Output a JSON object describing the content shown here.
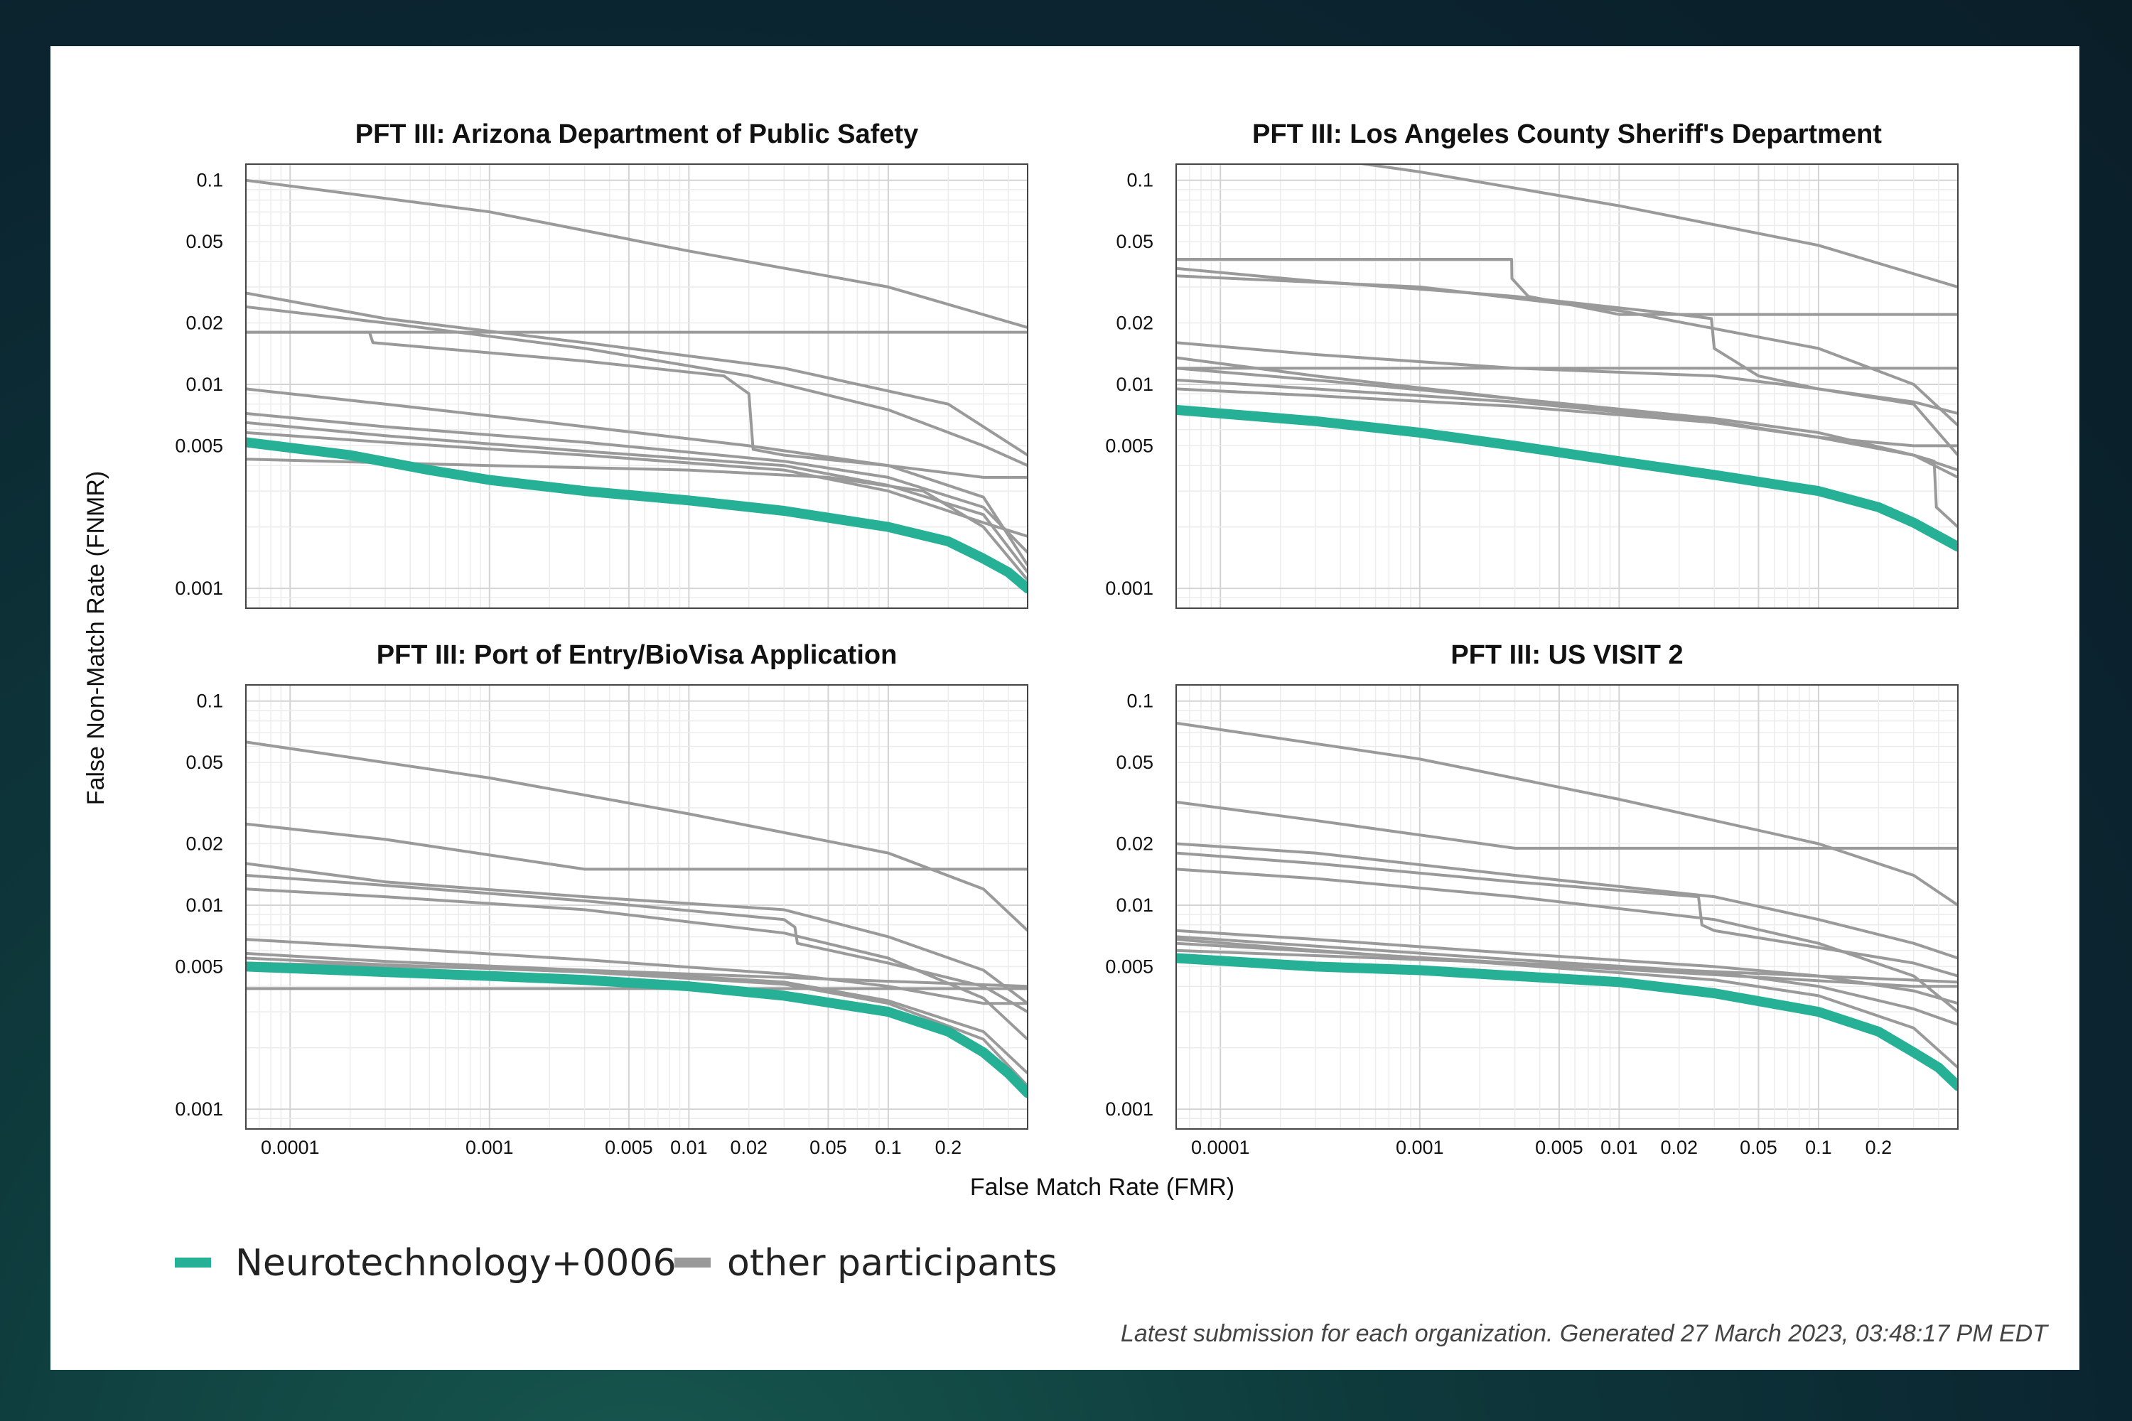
{
  "chart_data": {
    "type": "line",
    "xlabel": "False Match Rate (FMR)",
    "ylabel": "False Non-Match Rate (FNMR)",
    "x_scale": "log",
    "y_scale": "log",
    "xlim": [
      6e-05,
      0.5
    ],
    "ylim": [
      0.0008,
      0.12
    ],
    "x_ticks": [
      {
        "value": 0.0001,
        "label": "0.0001"
      },
      {
        "value": 0.001,
        "label": "0.001"
      },
      {
        "value": 0.005,
        "label": "0.005"
      },
      {
        "value": 0.01,
        "label": "0.01"
      },
      {
        "value": 0.02,
        "label": "0.02"
      },
      {
        "value": 0.05,
        "label": "0.05"
      },
      {
        "value": 0.1,
        "label": "0.1"
      },
      {
        "value": 0.2,
        "label": "0.2"
      }
    ],
    "y_ticks": [
      {
        "value": 0.1,
        "label": "0.1"
      },
      {
        "value": 0.05,
        "label": "0.05"
      },
      {
        "value": 0.02,
        "label": "0.02"
      },
      {
        "value": 0.01,
        "label": "0.01"
      },
      {
        "value": 0.005,
        "label": "0.005"
      },
      {
        "value": 0.001,
        "label": "0.001"
      }
    ],
    "grid": true,
    "legend": {
      "placement": "bottom-left",
      "entries": [
        {
          "label": "Neurotechnology+0006",
          "color": "#26b096"
        },
        {
          "label": "other participants",
          "color": "#999999"
        }
      ]
    },
    "colors": {
      "highlight": "#26b096",
      "other": "#9a9a9a",
      "grid": "#e3e3e3"
    },
    "panels": [
      {
        "title": "PFT III: Arizona Department of Public Safety",
        "highlight": {
          "x": [
            6e-05,
            0.0002,
            0.0005,
            0.001,
            0.003,
            0.01,
            0.03,
            0.1,
            0.2,
            0.3,
            0.4,
            0.5
          ],
          "y": [
            0.0052,
            0.0045,
            0.0038,
            0.0034,
            0.003,
            0.0027,
            0.0024,
            0.002,
            0.0017,
            0.0014,
            0.0012,
            0.001
          ]
        },
        "others": [
          {
            "x": [
              6e-05,
              0.001,
              0.01,
              0.1,
              0.5
            ],
            "y": [
              0.1,
              0.07,
              0.045,
              0.03,
              0.019
            ]
          },
          {
            "x": [
              6e-05,
              0.5
            ],
            "y": [
              0.018,
              0.018
            ]
          },
          {
            "x": [
              6e-05,
              0.0003,
              0.003,
              0.03,
              0.2,
              0.5
            ],
            "y": [
              0.028,
              0.021,
              0.016,
              0.012,
              0.008,
              0.0045
            ]
          },
          {
            "x": [
              6e-05,
              0.0003,
              0.003,
              0.02,
              0.1,
              0.3,
              0.5
            ],
            "y": [
              0.024,
              0.02,
              0.015,
              0.011,
              0.0075,
              0.005,
              0.004
            ]
          },
          {
            "x": [
              6e-05,
              0.00025,
              0.00026,
              0.003,
              0.015,
              0.02,
              0.021,
              0.03,
              0.1,
              0.3,
              0.5
            ],
            "y": [
              0.018,
              0.018,
              0.016,
              0.013,
              0.011,
              0.009,
              0.0048,
              0.0045,
              0.004,
              0.0035,
              0.0035
            ]
          },
          {
            "x": [
              6e-05,
              0.0003,
              0.002,
              0.02,
              0.1,
              0.3,
              0.5
            ],
            "y": [
              0.0095,
              0.008,
              0.0065,
              0.005,
              0.004,
              0.0028,
              0.0013
            ]
          },
          {
            "x": [
              6e-05,
              0.0003,
              0.003,
              0.03,
              0.1,
              0.3,
              0.5
            ],
            "y": [
              0.0072,
              0.0062,
              0.0052,
              0.0042,
              0.0035,
              0.0025,
              0.0015
            ]
          },
          {
            "x": [
              6e-05,
              0.0003,
              0.003,
              0.03,
              0.1,
              0.3,
              0.5
            ],
            "y": [
              0.0065,
              0.0056,
              0.0047,
              0.004,
              0.0032,
              0.0023,
              0.0012
            ]
          },
          {
            "x": [
              6e-05,
              0.0003,
              0.003,
              0.03,
              0.1,
              0.3,
              0.5
            ],
            "y": [
              0.0058,
              0.0052,
              0.0045,
              0.0038,
              0.003,
              0.0021,
              0.0018
            ]
          },
          {
            "x": [
              6e-05,
              0.001,
              0.01,
              0.05,
              0.15,
              0.3,
              0.5
            ],
            "y": [
              0.0043,
              0.004,
              0.0038,
              0.0035,
              0.003,
              0.002,
              0.0011
            ]
          }
        ]
      },
      {
        "title": "PFT III: Los Angeles County Sheriff's Department",
        "highlight": {
          "x": [
            6e-05,
            0.0003,
            0.001,
            0.003,
            0.01,
            0.03,
            0.1,
            0.2,
            0.3,
            0.5
          ],
          "y": [
            0.0075,
            0.0066,
            0.0058,
            0.005,
            0.0042,
            0.0036,
            0.003,
            0.0025,
            0.0021,
            0.0016
          ]
        },
        "others": [
          {
            "x": [
              6e-05,
              0.0003,
              0.001,
              0.01,
              0.1,
              0.5
            ],
            "y": [
              0.15,
              0.13,
              0.11,
              0.075,
              0.048,
              0.03
            ]
          },
          {
            "x": [
              6e-05,
              0.00289,
              0.0029,
              0.0035,
              0.01,
              0.5
            ],
            "y": [
              0.041,
              0.041,
              0.033,
              0.027,
              0.022,
              0.022
            ]
          },
          {
            "x": [
              6e-05,
              0.0003,
              0.003,
              0.02,
              0.029,
              0.03,
              0.05,
              0.1,
              0.3,
              0.5
            ],
            "y": [
              0.037,
              0.032,
              0.027,
              0.022,
              0.021,
              0.015,
              0.011,
              0.0095,
              0.008,
              0.0045
            ]
          },
          {
            "x": [
              6e-05,
              0.001,
              0.01,
              0.1,
              0.3,
              0.5
            ],
            "y": [
              0.034,
              0.03,
              0.023,
              0.015,
              0.01,
              0.0063
            ]
          },
          {
            "x": [
              6e-05,
              0.0003,
              0.003,
              0.03,
              0.1,
              0.3,
              0.5
            ],
            "y": [
              0.016,
              0.014,
              0.012,
              0.011,
              0.0095,
              0.0082,
              0.0072
            ]
          },
          {
            "x": [
              6e-05,
              0.5
            ],
            "y": [
              0.012,
              0.012
            ]
          },
          {
            "x": [
              6e-05,
              0.0003,
              0.003,
              0.03,
              0.1,
              0.3,
              0.5
            ],
            "y": [
              0.0135,
              0.011,
              0.0085,
              0.0065,
              0.0055,
              0.005,
              0.005
            ]
          },
          {
            "x": [
              6e-05,
              0.0003,
              0.003,
              0.03,
              0.1,
              0.3,
              0.5
            ],
            "y": [
              0.012,
              0.0105,
              0.0085,
              0.0068,
              0.0058,
              0.0045,
              0.0035
            ]
          },
          {
            "x": [
              6e-05,
              0.0003,
              0.003,
              0.03,
              0.1,
              0.3,
              0.38,
              0.39,
              0.5
            ],
            "y": [
              0.0105,
              0.0095,
              0.0082,
              0.0066,
              0.0055,
              0.0045,
              0.0042,
              0.0025,
              0.002
            ]
          },
          {
            "x": [
              6e-05,
              0.0003,
              0.003,
              0.03,
              0.1,
              0.3,
              0.5
            ],
            "y": [
              0.0095,
              0.0088,
              0.0078,
              0.0065,
              0.0055,
              0.0045,
              0.0038
            ]
          }
        ]
      },
      {
        "title": "PFT III: Port of Entry/BioVisa Application",
        "highlight": {
          "x": [
            6e-05,
            0.0003,
            0.001,
            0.003,
            0.01,
            0.03,
            0.1,
            0.2,
            0.3,
            0.4,
            0.5
          ],
          "y": [
            0.005,
            0.0047,
            0.0045,
            0.0043,
            0.004,
            0.0036,
            0.003,
            0.0024,
            0.0019,
            0.0015,
            0.0012
          ]
        },
        "others": [
          {
            "x": [
              6e-05,
              0.001,
              0.01,
              0.1,
              0.3,
              0.5
            ],
            "y": [
              0.063,
              0.042,
              0.028,
              0.018,
              0.012,
              0.0075
            ]
          },
          {
            "x": [
              6e-05,
              0.0003,
              0.003,
              0.5
            ],
            "y": [
              0.025,
              0.021,
              0.015,
              0.015
            ]
          },
          {
            "x": [
              6e-05,
              0.0003,
              0.003,
              0.03,
              0.1,
              0.3,
              0.5
            ],
            "y": [
              0.016,
              0.013,
              0.011,
              0.0095,
              0.007,
              0.0048,
              0.0033
            ]
          },
          {
            "x": [
              6e-05,
              0.0003,
              0.003,
              0.03,
              0.034,
              0.035,
              0.1,
              0.3,
              0.5
            ],
            "y": [
              0.014,
              0.0125,
              0.0105,
              0.0085,
              0.0078,
              0.0065,
              0.0052,
              0.004,
              0.003
            ]
          },
          {
            "x": [
              6e-05,
              0.0003,
              0.003,
              0.03,
              0.1,
              0.3,
              0.5
            ],
            "y": [
              0.012,
              0.011,
              0.0095,
              0.0073,
              0.0055,
              0.0035,
              0.0022
            ]
          },
          {
            "x": [
              6e-05,
              0.0003,
              0.003,
              0.03,
              0.1,
              0.3,
              0.5
            ],
            "y": [
              0.0068,
              0.0062,
              0.0054,
              0.0046,
              0.004,
              0.0033,
              0.0033
            ]
          },
          {
            "x": [
              6e-05,
              0.0003,
              0.003,
              0.03,
              0.1,
              0.3,
              0.5
            ],
            "y": [
              0.0058,
              0.0053,
              0.0048,
              0.0042,
              0.0034,
              0.0024,
              0.0015
            ]
          },
          {
            "x": [
              6e-05,
              0.0003,
              0.003,
              0.03,
              0.1,
              0.3,
              0.5
            ],
            "y": [
              0.0055,
              0.0051,
              0.0047,
              0.0041,
              0.0033,
              0.0022,
              0.0013
            ]
          },
          {
            "x": [
              6e-05,
              0.003,
              0.5
            ],
            "y": [
              0.0052,
              0.0048,
              0.004
            ]
          },
          {
            "x": [
              6e-05,
              0.5
            ],
            "y": [
              0.0039,
              0.0039
            ]
          }
        ]
      },
      {
        "title": "PFT III: US VISIT 2",
        "highlight": {
          "x": [
            6e-05,
            0.0003,
            0.001,
            0.003,
            0.01,
            0.03,
            0.1,
            0.2,
            0.3,
            0.4,
            0.5
          ],
          "y": [
            0.0055,
            0.005,
            0.0048,
            0.0045,
            0.0042,
            0.0037,
            0.003,
            0.0024,
            0.0019,
            0.0016,
            0.0013
          ]
        },
        "others": [
          {
            "x": [
              6e-05,
              0.001,
              0.01,
              0.1,
              0.3,
              0.5
            ],
            "y": [
              0.078,
              0.052,
              0.033,
              0.02,
              0.014,
              0.01
            ]
          },
          {
            "x": [
              6e-05,
              0.0003,
              0.003,
              0.5
            ],
            "y": [
              0.032,
              0.026,
              0.019,
              0.019
            ]
          },
          {
            "x": [
              6e-05,
              0.0003,
              0.003,
              0.03,
              0.1,
              0.3,
              0.5
            ],
            "y": [
              0.02,
              0.018,
              0.014,
              0.011,
              0.0085,
              0.0065,
              0.0055
            ]
          },
          {
            "x": [
              6e-05,
              0.0003,
              0.003,
              0.025,
              0.026,
              0.03,
              0.1,
              0.3,
              0.5
            ],
            "y": [
              0.018,
              0.016,
              0.013,
              0.011,
              0.008,
              0.0075,
              0.0062,
              0.0052,
              0.0045
            ]
          },
          {
            "x": [
              6e-05,
              0.0003,
              0.003,
              0.03,
              0.1,
              0.3,
              0.5
            ],
            "y": [
              0.015,
              0.0135,
              0.011,
              0.0085,
              0.0065,
              0.0045,
              0.003
            ]
          },
          {
            "x": [
              6e-05,
              0.0003,
              0.003,
              0.03,
              0.1,
              0.3,
              0.5
            ],
            "y": [
              0.0075,
              0.0068,
              0.0058,
              0.005,
              0.0045,
              0.0038,
              0.0033
            ]
          },
          {
            "x": [
              6e-05,
              0.0003,
              0.003,
              0.03,
              0.1,
              0.3,
              0.5
            ],
            "y": [
              0.007,
              0.0063,
              0.0054,
              0.0047,
              0.004,
              0.0031,
              0.0026
            ]
          },
          {
            "x": [
              6e-05,
              0.0003,
              0.003,
              0.03,
              0.1,
              0.3,
              0.5
            ],
            "y": [
              0.0068,
              0.006,
              0.0051,
              0.0043,
              0.0036,
              0.0025,
              0.0016
            ]
          },
          {
            "x": [
              6e-05,
              0.003,
              0.5
            ],
            "y": [
              0.006,
              0.0052,
              0.0042
            ]
          },
          {
            "x": [
              6e-05,
              0.3,
              0.5
            ],
            "y": [
              0.0065,
              0.004,
              0.004
            ]
          }
        ]
      }
    ]
  },
  "footnote": "Latest submission for each organization. Generated 27 March 2023, 03:48:17 PM EDT"
}
